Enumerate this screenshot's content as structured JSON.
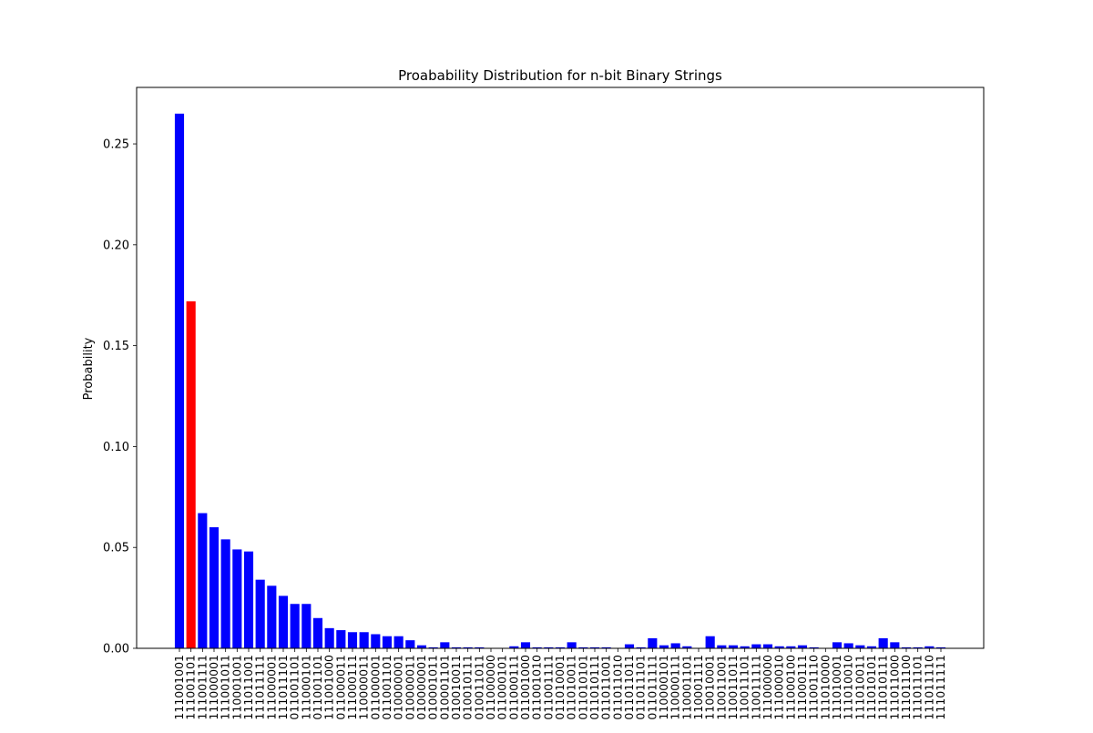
{
  "chart_data": {
    "type": "bar",
    "title": "Proabability Distribution for n-bit Binary Strings",
    "xlabel": "",
    "ylabel": "Probability",
    "ylim": [
      0,
      0.278
    ],
    "yticks": [
      "0.00",
      "0.05",
      "0.10",
      "0.15",
      "0.20",
      "0.25"
    ],
    "ytick_values": [
      0,
      0.05,
      0.1,
      0.15,
      0.2,
      0.25
    ],
    "grid": false,
    "colors": {
      "default": "#0000ff",
      "highlight": "#ff0000"
    },
    "highlight_index": 1,
    "categories": [
      "111001001",
      "111001101",
      "111001111",
      "111000001",
      "111001011",
      "110001001",
      "111011001",
      "111011111",
      "111000001",
      "111011101",
      "011001101",
      "111000101",
      "011001101",
      "111001000",
      "011000011",
      "111000111",
      "110000011",
      "011000001",
      "011001101",
      "010000001",
      "010000011",
      "010000001",
      "010001011",
      "010001101",
      "010010011",
      "010010111",
      "010011011",
      "011000000",
      "011000101",
      "011000111",
      "011001000",
      "011001010",
      "011001111",
      "011010001",
      "011010011",
      "011010101",
      "011010111",
      "011011001",
      "011011010",
      "011011011",
      "011011101",
      "011011111",
      "110000101",
      "110000111",
      "110001101",
      "110001111",
      "110010001",
      "110011001",
      "110011011",
      "110011101",
      "110011111",
      "111000000",
      "111000010",
      "111000100",
      "111000111",
      "111001110",
      "111010000",
      "111010001",
      "111010010",
      "111010011",
      "111010101",
      "111010111",
      "111011000",
      "111011100",
      "111011101",
      "111011110",
      "111011111"
    ],
    "values": [
      0.265,
      0.172,
      0.067,
      0.06,
      0.054,
      0.049,
      0.048,
      0.034,
      0.031,
      0.026,
      0.022,
      0.022,
      0.015,
      0.01,
      0.009,
      0.008,
      0.008,
      0.007,
      0.006,
      0.006,
      0.004,
      0.0015,
      0.0005,
      0.003,
      0.0005,
      0.0005,
      0.0005,
      0.0,
      0.0,
      0.001,
      0.003,
      0.0005,
      0.0005,
      0.0005,
      0.003,
      0.0005,
      0.0005,
      0.0005,
      0.0,
      0.002,
      0.0005,
      0.005,
      0.0015,
      0.0025,
      0.001,
      0.0,
      0.006,
      0.0015,
      0.0015,
      0.001,
      0.002,
      0.002,
      0.001,
      0.001,
      0.0015,
      0.0005,
      0.0,
      0.003,
      0.0025,
      0.0015,
      0.001,
      0.005,
      0.003,
      0.0005,
      0.0005,
      0.001,
      0.0005
    ]
  }
}
